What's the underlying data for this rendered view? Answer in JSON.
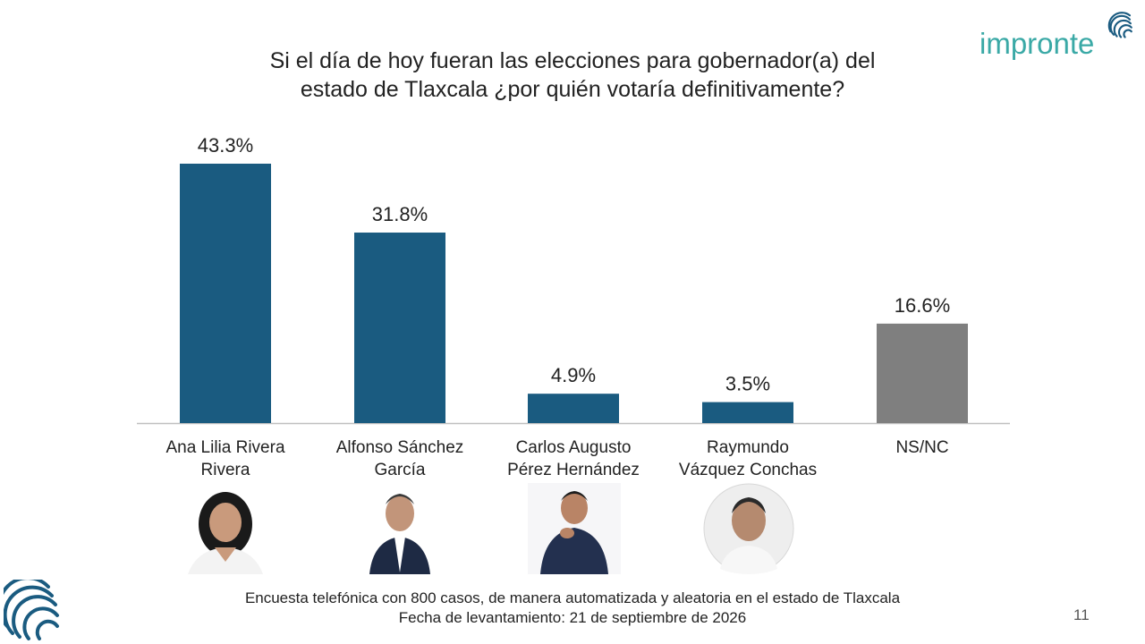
{
  "header": {
    "title_line1": "Si el día de hoy fueran las elecciones para gobernador(a) del",
    "title_line2": "estado de Tlaxcala ¿por quién votaría definitivamente?",
    "brand": "impronte"
  },
  "chart_data": {
    "type": "bar",
    "categories": [
      [
        "Ana Lilia Rivera",
        "Rivera"
      ],
      [
        "Alfonso Sánchez",
        "García"
      ],
      [
        "Carlos Augusto",
        "Pérez Hernández"
      ],
      [
        "Raymundo",
        "Vázquez Conchas"
      ],
      [
        "NS/NC"
      ]
    ],
    "values": [
      43.3,
      31.8,
      4.9,
      3.5,
      16.6
    ],
    "value_labels": [
      "43.3%",
      "31.8%",
      "4.9%",
      "3.5%",
      "16.6%"
    ],
    "colors": [
      "#1a5b80",
      "#1a5b80",
      "#1a5b80",
      "#1a5b80",
      "#7f7f7f"
    ],
    "ylim": [
      0,
      43.3
    ],
    "grid": false,
    "title": "Si el día de hoy fueran las elecciones para gobernador(a) del estado de Tlaxcala ¿por quién votaría definitivamente?"
  },
  "footer": {
    "line1": "Encuesta telefónica con 800 casos, de manera automatizada y aleatoria en el estado de Tlaxcala",
    "line2": "Fecha de levantamiento: 21 de septiembre de 2026",
    "page_number": "11"
  },
  "colors": {
    "primary_bar": "#1a5b80",
    "nsnc_bar": "#7f7f7f",
    "brand": "#3aa9a6"
  },
  "icons": {
    "brand_mark": "fingerprint-icon",
    "corner_mark": "fingerprint-icon"
  }
}
